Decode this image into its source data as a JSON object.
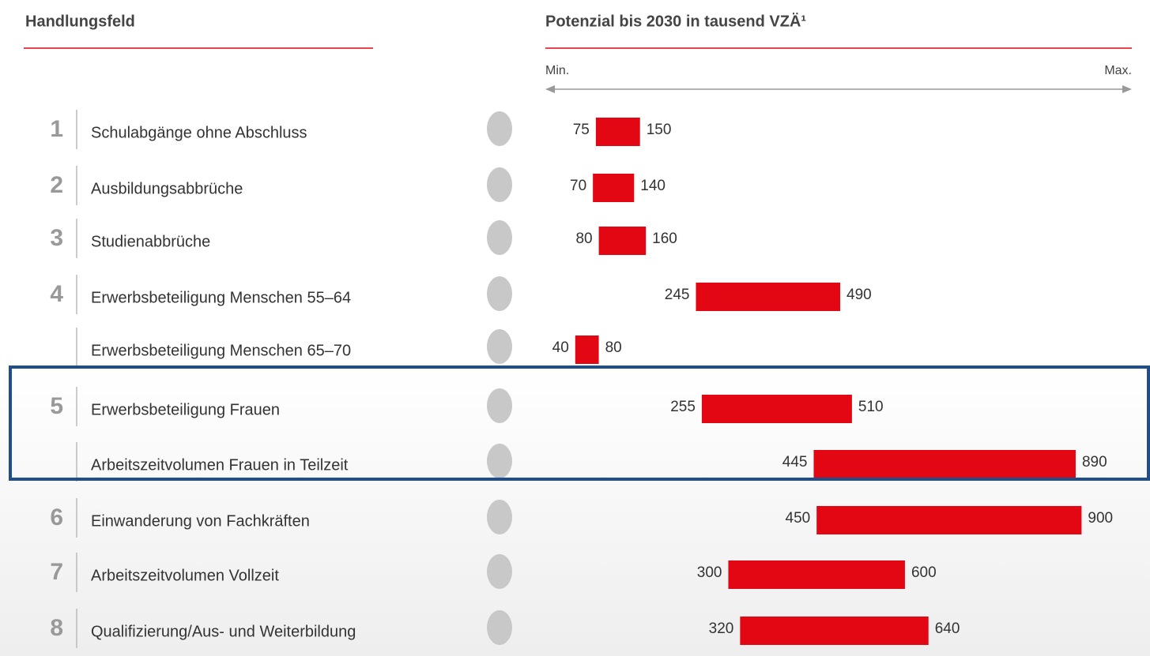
{
  "chart_data": {
    "type": "range_bar",
    "left_header": "Handlungsfeld",
    "right_header": "Potenzial bis 2030 in tausend VZÄ¹",
    "axis_min_label": "Min.",
    "axis_max_label": "Max.",
    "groups": [
      "1",
      "2",
      "3",
      "4",
      null,
      "5",
      null,
      "6",
      "7",
      "8"
    ],
    "categories": [
      "Schulabgänge ohne Abschluss",
      "Ausbildungsabbrüche",
      "Studienabbrüche",
      "Erwerbsbeteiligung Menschen 55–64",
      "Erwerbsbeteiligung Menschen 65–70",
      "Erwerbsbeteiligung Frauen",
      "Arbeitszeitvolumen Frauen in Teilzeit",
      "Einwanderung von Fachkräften",
      "Arbeitszeitvolumen Vollzeit",
      "Qualifizierung/Aus- und Weiterbildung"
    ],
    "low": [
      75,
      70,
      80,
      245,
      40,
      255,
      445,
      450,
      300,
      320
    ],
    "high": [
      150,
      140,
      160,
      490,
      80,
      510,
      890,
      900,
      600,
      640
    ],
    "color": "#e30613",
    "xlim": [
      0,
      980
    ]
  }
}
